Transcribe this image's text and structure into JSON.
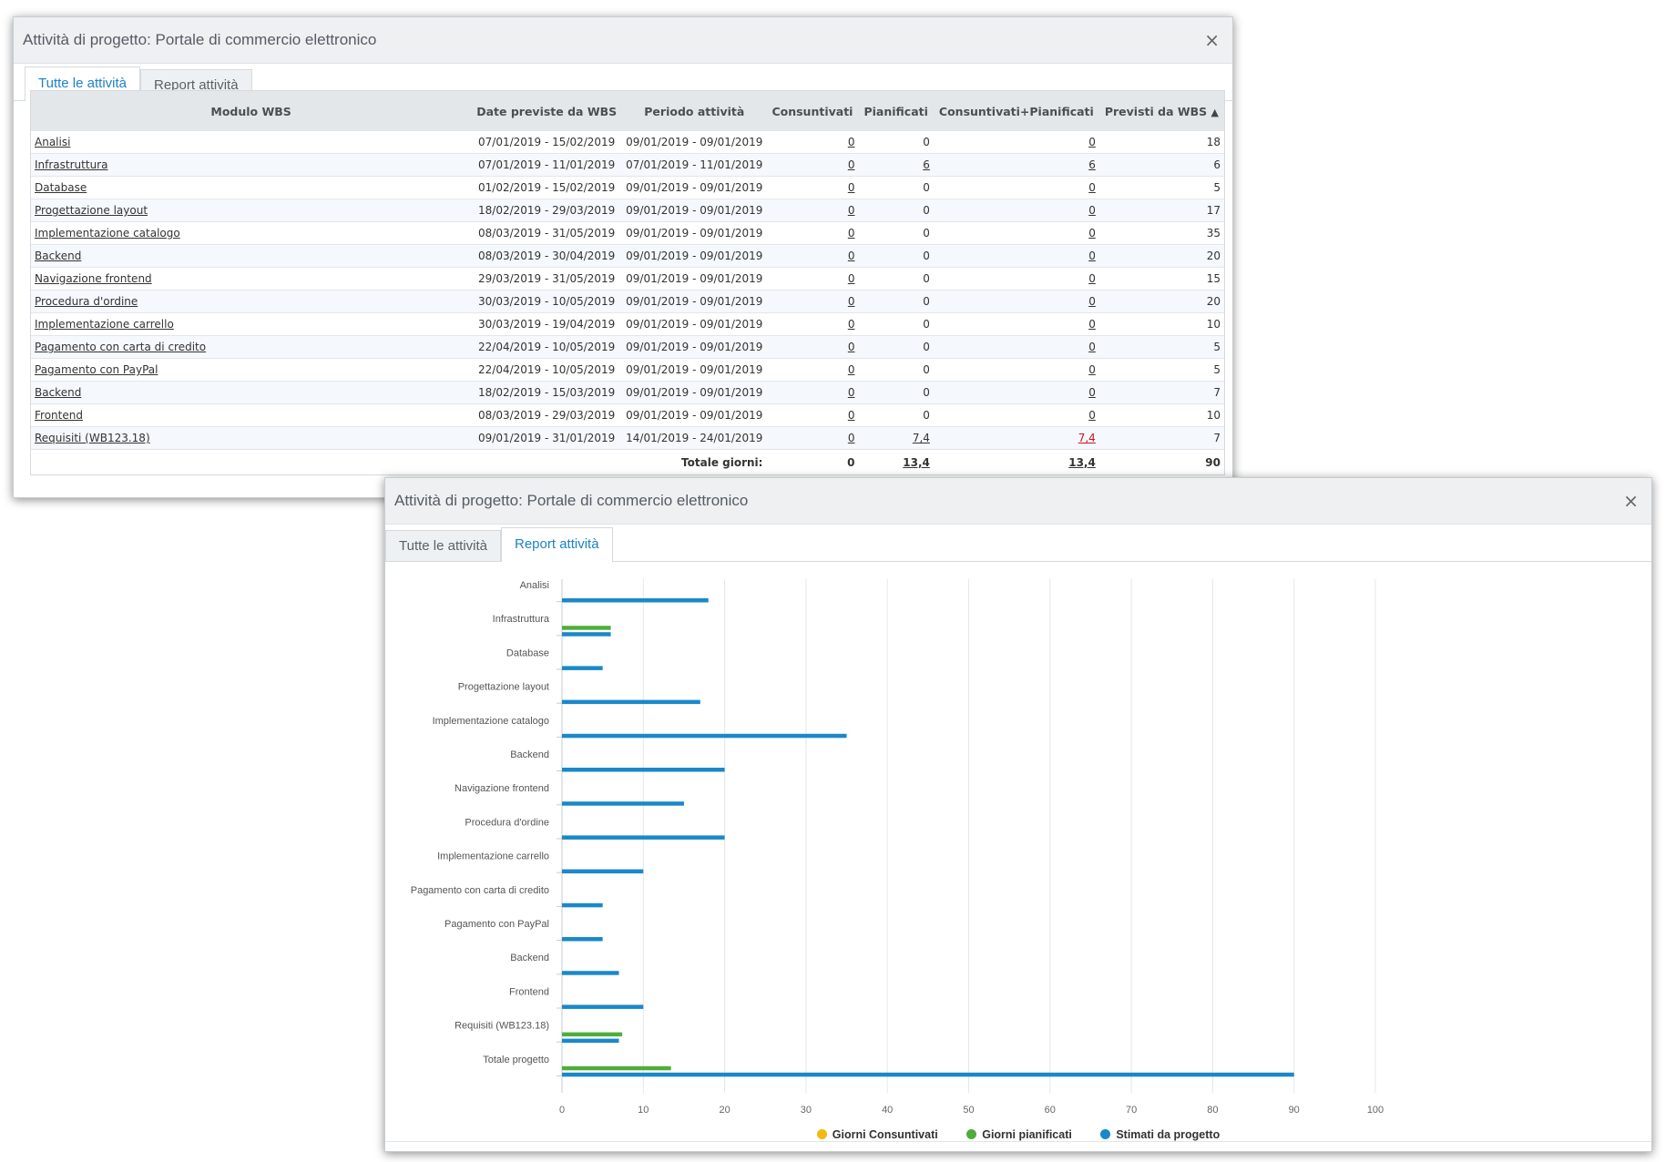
{
  "window1": {
    "title": "Attività di progetto: Portale di commercio elettronico",
    "close": "×",
    "tabs": [
      "Tutte le attività",
      "Report attività"
    ],
    "active_tab": 0,
    "columns": [
      "Modulo WBS",
      "Date previste da WBS",
      "Periodo attività",
      "Consuntivati",
      "Pianificati",
      "Consuntivati+Pianificati",
      "Previsti da WBS"
    ],
    "sort_icon": "sort-icon",
    "rows": [
      {
        "modulo": "Analisi",
        "date": "07/01/2019 - 15/02/2019",
        "periodo": "09/01/2019 - 09/01/2019",
        "cons": "0",
        "pian": "0",
        "cp": "0",
        "prev": "18"
      },
      {
        "modulo": "Infrastruttura",
        "date": "07/01/2019 - 11/01/2019",
        "periodo": "07/01/2019 - 11/01/2019",
        "cons": "0",
        "pian": "6",
        "cp": "6",
        "prev": "6"
      },
      {
        "modulo": "Database",
        "date": "01/02/2019 - 15/02/2019",
        "periodo": "09/01/2019 - 09/01/2019",
        "cons": "0",
        "pian": "0",
        "cp": "0",
        "prev": "5"
      },
      {
        "modulo": "Progettazione layout",
        "date": "18/02/2019 - 29/03/2019",
        "periodo": "09/01/2019 - 09/01/2019",
        "cons": "0",
        "pian": "0",
        "cp": "0",
        "prev": "17"
      },
      {
        "modulo": "Implementazione catalogo",
        "date": "08/03/2019 - 31/05/2019",
        "periodo": "09/01/2019 - 09/01/2019",
        "cons": "0",
        "pian": "0",
        "cp": "0",
        "prev": "35"
      },
      {
        "modulo": "Backend",
        "date": "08/03/2019 - 30/04/2019",
        "periodo": "09/01/2019 - 09/01/2019",
        "cons": "0",
        "pian": "0",
        "cp": "0",
        "prev": "20"
      },
      {
        "modulo": "Navigazione frontend",
        "date": "29/03/2019 - 31/05/2019",
        "periodo": "09/01/2019 - 09/01/2019",
        "cons": "0",
        "pian": "0",
        "cp": "0",
        "prev": "15"
      },
      {
        "modulo": "Procedura d'ordine",
        "date": "30/03/2019 - 10/05/2019",
        "periodo": "09/01/2019 - 09/01/2019",
        "cons": "0",
        "pian": "0",
        "cp": "0",
        "prev": "20"
      },
      {
        "modulo": "Implementazione carrello",
        "date": "30/03/2019 - 19/04/2019",
        "periodo": "09/01/2019 - 09/01/2019",
        "cons": "0",
        "pian": "0",
        "cp": "0",
        "prev": "10"
      },
      {
        "modulo": "Pagamento con carta di credito",
        "date": "22/04/2019 - 10/05/2019",
        "periodo": "09/01/2019 - 09/01/2019",
        "cons": "0",
        "pian": "0",
        "cp": "0",
        "prev": "5"
      },
      {
        "modulo": "Pagamento con PayPal",
        "date": "22/04/2019 - 10/05/2019",
        "periodo": "09/01/2019 - 09/01/2019",
        "cons": "0",
        "pian": "0",
        "cp": "0",
        "prev": "5"
      },
      {
        "modulo": "Backend",
        "date": "18/02/2019 - 15/03/2019",
        "periodo": "09/01/2019 - 09/01/2019",
        "cons": "0",
        "pian": "0",
        "cp": "0",
        "prev": "7"
      },
      {
        "modulo": "Frontend",
        "date": "08/03/2019 - 29/03/2019",
        "periodo": "09/01/2019 - 09/01/2019",
        "cons": "0",
        "pian": "0",
        "cp": "0",
        "prev": "10"
      },
      {
        "modulo": "Requisiti (WB123.18)",
        "date": "09/01/2019 - 31/01/2019",
        "periodo": "14/01/2019 - 24/01/2019",
        "cons": "0",
        "pian": "7,4",
        "cp": "7,4",
        "prev": "7",
        "cp_red": true
      }
    ],
    "total": {
      "label": "Totale giorni:",
      "cons": "0",
      "pian": "13,4",
      "cp": "13,4",
      "prev": "90"
    }
  },
  "window2": {
    "title": "Attività di progetto: Portale di commercio elettronico",
    "close": "×",
    "tabs": [
      "Tutte le attività",
      "Report attività"
    ],
    "active_tab": 1
  },
  "colors": {
    "consuntivati": "#f5b80f",
    "pianificati": "#4fae3a",
    "stimati": "#1a88c9",
    "accent": "#1e82c4",
    "red": "#d0121b"
  },
  "chart_data": {
    "type": "bar",
    "orientation": "horizontal",
    "categories": [
      "Analisi",
      "Infrastruttura",
      "Database",
      "Progettazione layout",
      "Implementazione catalogo",
      "Backend",
      "Navigazione frontend",
      "Procedura d'ordine",
      "Implementazione carrello",
      "Pagamento con carta di credito",
      "Pagamento con PayPal",
      "Backend",
      "Frontend",
      "Requisiti (WB123.18)",
      "Totale progetto"
    ],
    "series": [
      {
        "name": "Giorni Consuntivati",
        "color": "#f5b80f",
        "values": [
          0,
          0,
          0,
          0,
          0,
          0,
          0,
          0,
          0,
          0,
          0,
          0,
          0,
          0,
          0
        ]
      },
      {
        "name": "Giorni pianificati",
        "color": "#4fae3a",
        "values": [
          0,
          6,
          0,
          0,
          0,
          0,
          0,
          0,
          0,
          0,
          0,
          0,
          0,
          7.4,
          13.4
        ]
      },
      {
        "name": "Stimati da progetto",
        "color": "#1a88c9",
        "values": [
          18,
          6,
          5,
          17,
          35,
          20,
          15,
          20,
          10,
          5,
          5,
          7,
          10,
          7,
          90
        ]
      }
    ],
    "xlim": [
      0,
      100
    ],
    "xticks": [
      "0",
      "10",
      "20",
      "30",
      "40",
      "50",
      "60",
      "70",
      "80",
      "90",
      "100"
    ],
    "grid": true,
    "legend_position": "bottom"
  }
}
